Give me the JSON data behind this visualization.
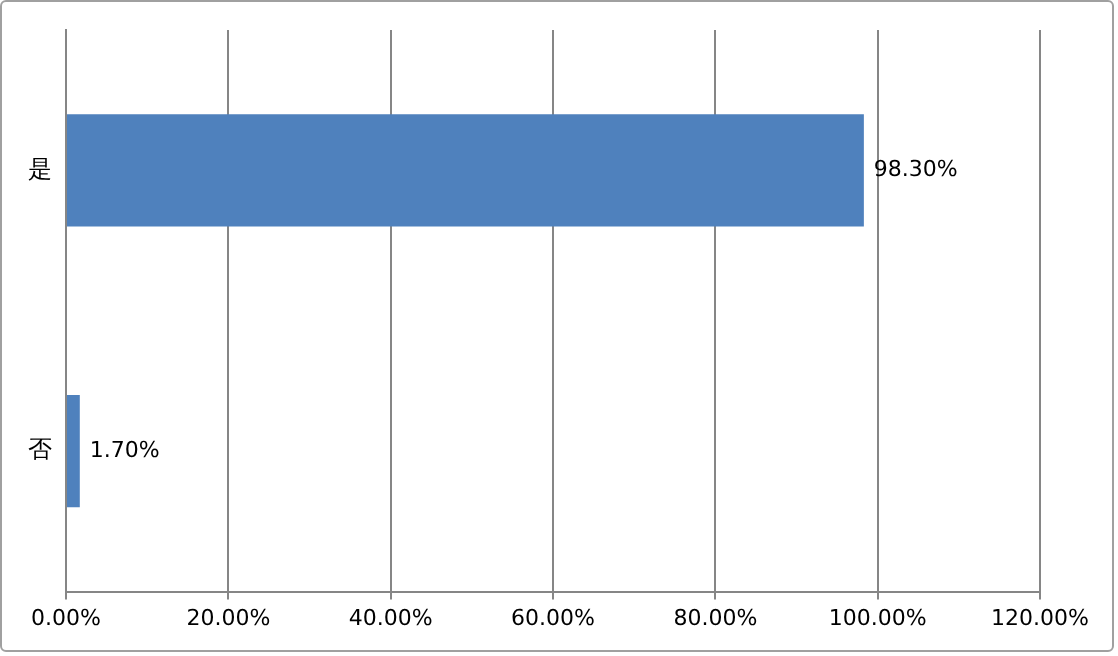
{
  "chart_data": {
    "type": "bar",
    "orientation": "horizontal",
    "categories": [
      "是",
      "否"
    ],
    "values": [
      98.3,
      1.7
    ],
    "color": "#4f81bd",
    "value_labels": [
      "98.30%",
      "1.70%"
    ],
    "xlim": [
      0,
      120
    ],
    "xticks": [
      {
        "value": 0,
        "label": "0.00%"
      },
      {
        "value": 20,
        "label": "20.00%"
      },
      {
        "value": 40,
        "label": "40.00%"
      },
      {
        "value": 60,
        "label": "60.00%"
      },
      {
        "value": 80,
        "label": "80.00%"
      },
      {
        "value": 100,
        "label": "100.00%"
      },
      {
        "value": 120,
        "label": "120.00%"
      }
    ],
    "grid": "x"
  }
}
